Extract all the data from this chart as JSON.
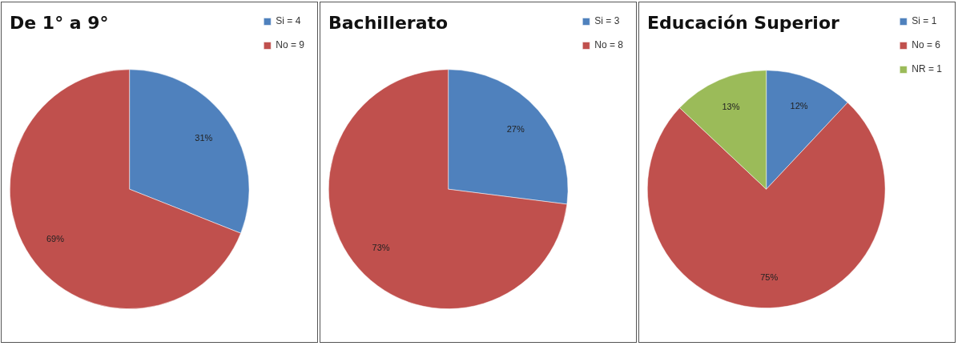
{
  "chart_data": [
    {
      "type": "pie",
      "title": "De 1° a 9°",
      "categories": [
        "Si = 4",
        "No = 9"
      ],
      "values": [
        31,
        69
      ],
      "colors": [
        "#4f81bd",
        "#c0504d"
      ],
      "value_labels": [
        "31%",
        "69%"
      ],
      "legend": "right"
    },
    {
      "type": "pie",
      "title": "Bachillerato",
      "categories": [
        "Si = 3",
        "No = 8"
      ],
      "values": [
        27,
        73
      ],
      "colors": [
        "#4f81bd",
        "#c0504d"
      ],
      "value_labels": [
        "27%",
        "73%"
      ],
      "legend": "right"
    },
    {
      "type": "pie",
      "title": "Educación Superior",
      "categories": [
        "Si = 1",
        "No = 6",
        "NR = 1"
      ],
      "values": [
        12,
        75,
        13
      ],
      "colors": [
        "#4f81bd",
        "#c0504d",
        "#9bbb59"
      ],
      "value_labels": [
        "12%",
        "75%",
        "13%"
      ],
      "legend": "right"
    }
  ]
}
